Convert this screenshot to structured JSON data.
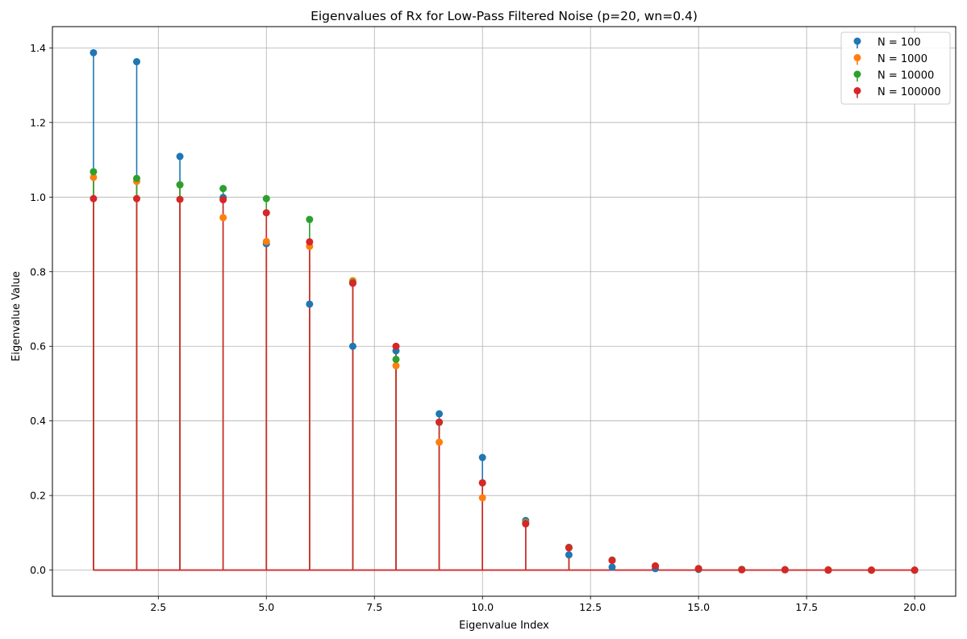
{
  "chart_data": {
    "type": "stem",
    "title": "Eigenvalues of Rx for Low-Pass Filtered Noise (p=20, wn=0.4)",
    "xlabel": "Eigenvalue Index",
    "ylabel": "Eigenvalue Value",
    "xlim": [
      0.05,
      20.95
    ],
    "ylim": [
      -0.07,
      1.457
    ],
    "xticks": [
      2.5,
      5.0,
      7.5,
      10.0,
      12.5,
      15.0,
      17.5,
      20.0
    ],
    "xtick_labels": [
      "2.5",
      "5.0",
      "7.5",
      "10.0",
      "12.5",
      "15.0",
      "17.5",
      "20.0"
    ],
    "yticks": [
      0.0,
      0.2,
      0.4,
      0.6,
      0.8,
      1.0,
      1.2,
      1.4
    ],
    "ytick_labels": [
      "0.0",
      "0.2",
      "0.4",
      "0.6",
      "0.8",
      "1.0",
      "1.2",
      "1.4"
    ],
    "grid": true,
    "legend_position": "top-right",
    "x": [
      1,
      2,
      3,
      4,
      5,
      6,
      7,
      8,
      9,
      10,
      11,
      12,
      13,
      14,
      15,
      16,
      17,
      18,
      19,
      20
    ],
    "series": [
      {
        "name": "N = 100",
        "color": "#1f77b4",
        "values": [
          1.387,
          1.363,
          1.109,
          0.999,
          0.875,
          0.713,
          0.6,
          0.588,
          0.419,
          0.302,
          0.133,
          0.041,
          0.008,
          0.004,
          0.002,
          0.001,
          0.001,
          0.001,
          0.0,
          0.0
        ]
      },
      {
        "name": "N = 1000",
        "color": "#ff7f0e",
        "values": [
          1.053,
          1.042,
          1.033,
          0.945,
          0.881,
          0.868,
          0.776,
          0.548,
          0.343,
          0.194,
          0.128,
          0.06,
          0.026,
          0.011,
          0.004,
          0.002,
          0.001,
          0.001,
          0.0,
          0.0
        ]
      },
      {
        "name": "N = 10000",
        "color": "#2ca02c",
        "values": [
          1.068,
          1.05,
          1.033,
          1.023,
          0.996,
          0.94,
          0.771,
          0.565,
          0.396,
          0.234,
          0.126,
          0.061,
          0.027,
          0.011,
          0.004,
          0.002,
          0.001,
          0.0,
          0.0,
          0.0
        ]
      },
      {
        "name": "N = 100000",
        "color": "#d62728",
        "values": [
          0.996,
          0.996,
          0.994,
          0.993,
          0.958,
          0.88,
          0.769,
          0.6,
          0.397,
          0.234,
          0.124,
          0.06,
          0.026,
          0.011,
          0.004,
          0.001,
          0.001,
          0.0,
          0.0,
          0.0
        ]
      }
    ]
  }
}
